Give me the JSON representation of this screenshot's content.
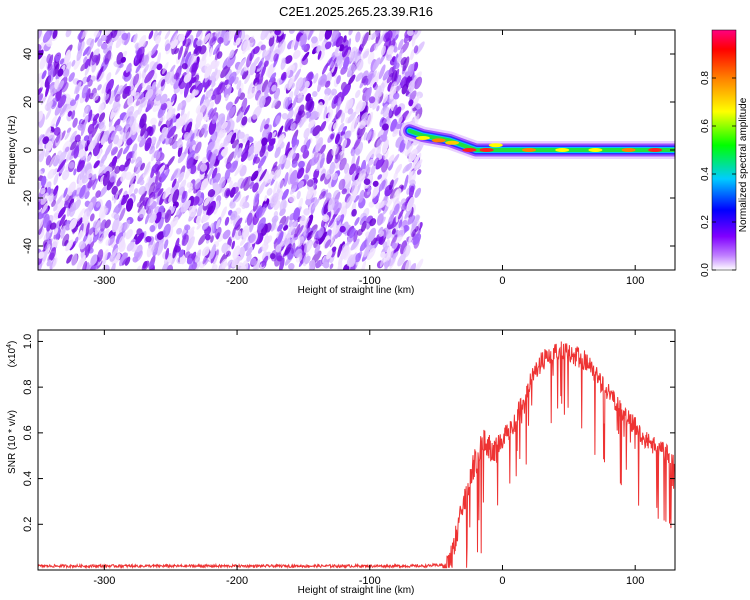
{
  "title": "C2E1.2025.265.23.39.R16",
  "chart_data": [
    {
      "type": "heatmap",
      "name": "spectrogram",
      "xlabel": "Height of straight line (km)",
      "ylabel": "Frequency (Hz)",
      "xlim": [
        -350,
        130
      ],
      "ylim": [
        -50,
        50
      ],
      "xticks": [
        -300,
        -200,
        -100,
        0,
        100
      ],
      "yticks": [
        -40,
        -20,
        0,
        20,
        40
      ],
      "noise_region_x": [
        -350,
        -62
      ],
      "signal_track": {
        "x": [
          -70,
          -60,
          -50,
          -40,
          -30,
          -20,
          -10,
          0,
          20,
          40,
          60,
          80,
          100,
          130
        ],
        "freq": [
          8,
          6,
          5,
          4,
          2,
          0,
          0,
          0,
          0,
          0,
          0,
          0,
          0,
          0
        ]
      },
      "colorbar": {
        "label": "Normalized spectral amplitude",
        "ticks": [
          0.0,
          0.2,
          0.4,
          0.6,
          0.8
        ],
        "range": [
          0,
          1
        ],
        "colors": [
          "#ffffff",
          "#8000ff",
          "#0000ff",
          "#00ffff",
          "#00ff00",
          "#ffff00",
          "#ff8000",
          "#ff0000",
          "#ff0080"
        ]
      }
    },
    {
      "type": "line",
      "name": "snr",
      "xlabel": "Height of straight line (km)",
      "ylabel": "SNR (10 * v/v)",
      "exponent_label": "(x10",
      "exponent_value": "4",
      "exponent_close": ")",
      "xlim": [
        -350,
        130
      ],
      "ylim": [
        0,
        1.05
      ],
      "xticks": [
        -300,
        -200,
        -100,
        0,
        100
      ],
      "yticks": [
        0.2,
        0.4,
        0.6,
        0.8,
        1.0
      ],
      "color": "#ee3333",
      "series": {
        "x": [
          -350,
          -300,
          -250,
          -200,
          -150,
          -100,
          -60,
          -45,
          -40,
          -35,
          -30,
          -25,
          -20,
          -15,
          -10,
          -5,
          0,
          5,
          10,
          15,
          20,
          25,
          30,
          35,
          40,
          45,
          50,
          55,
          60,
          65,
          70,
          75,
          80,
          85,
          90,
          95,
          100,
          105,
          110,
          115,
          120,
          125,
          130
        ],
        "values": [
          0.015,
          0.015,
          0.015,
          0.015,
          0.015,
          0.015,
          0.015,
          0.02,
          0.1,
          0.2,
          0.33,
          0.45,
          0.55,
          0.62,
          0.6,
          0.58,
          0.62,
          0.65,
          0.7,
          0.78,
          0.85,
          0.92,
          0.96,
          0.99,
          1.0,
          1.0,
          0.99,
          0.98,
          0.97,
          0.95,
          0.9,
          0.86,
          0.82,
          0.78,
          0.74,
          0.7,
          0.67,
          0.63,
          0.6,
          0.58,
          0.57,
          0.55,
          0.5
        ]
      }
    }
  ]
}
